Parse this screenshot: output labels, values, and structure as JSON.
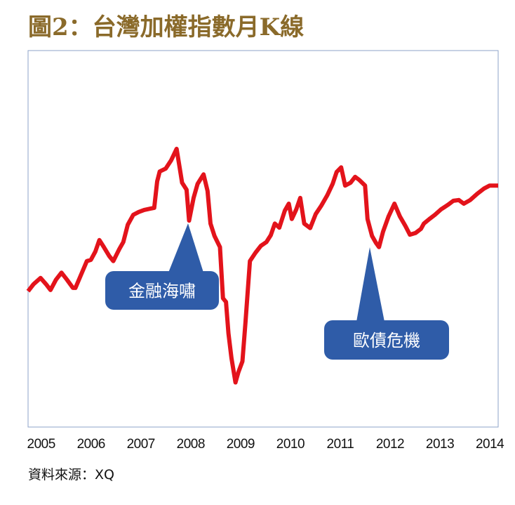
{
  "chart_data": {
    "type": "line",
    "title": "圖2：台灣加權指數月K線",
    "source": "資料來源：XQ",
    "color": "#e3131b",
    "x": [
      2004.85,
      2004.96,
      2005.1,
      2005.21,
      2005.3,
      2005.41,
      2005.52,
      2005.63,
      2005.75,
      2005.8,
      2005.92,
      2006.03,
      2006.11,
      2006.2,
      2006.28,
      2006.37,
      2006.48,
      2006.56,
      2006.68,
      2006.76,
      2006.85,
      2006.96,
      2007.07,
      2007.18,
      2007.3,
      2007.38,
      2007.44,
      2007.49,
      2007.61,
      2007.72,
      2007.83,
      2007.89,
      2007.94,
      2008.03,
      2008.08,
      2008.17,
      2008.25,
      2008.37,
      2008.45,
      2008.51,
      2008.59,
      2008.7,
      2008.76,
      2008.82,
      2008.87,
      2008.93,
      2009.01,
      2009.07,
      2009.15,
      2009.21,
      2009.3,
      2009.41,
      2009.52,
      2009.63,
      2009.72,
      2009.8,
      2009.89,
      2010.0,
      2010.08,
      2010.14,
      2010.23,
      2010.31,
      2010.39,
      2010.51,
      2010.62,
      2010.73,
      2010.85,
      2010.96,
      2011.04,
      2011.13,
      2011.21,
      2011.32,
      2011.41,
      2011.49,
      2011.61,
      2011.66,
      2011.75,
      2011.83,
      2011.89,
      2011.97,
      2012.08,
      2012.2,
      2012.31,
      2012.42,
      2012.51,
      2012.62,
      2012.73,
      2012.79,
      2012.9,
      2013.01,
      2013.13,
      2013.27,
      2013.38,
      2013.49,
      2013.59,
      2013.72,
      2013.86,
      2014.0,
      2014.11,
      2014.28
    ],
    "values": [
      6320,
      6490,
      6640,
      6490,
      6350,
      6600,
      6770,
      6600,
      6400,
      6400,
      6740,
      7050,
      7080,
      7280,
      7560,
      7390,
      7170,
      7050,
      7340,
      7510,
      7930,
      8170,
      8240,
      8290,
      8320,
      8340,
      8980,
      9220,
      9290,
      9490,
      9770,
      9320,
      8950,
      8780,
      8030,
      8580,
      8920,
      9150,
      8750,
      7960,
      7660,
      7390,
      6150,
      6060,
      5300,
      4700,
      4110,
      4360,
      4620,
      5550,
      7050,
      7250,
      7420,
      7510,
      7680,
      7960,
      7860,
      8270,
      8440,
      8070,
      8300,
      8580,
      7960,
      7850,
      8190,
      8390,
      8640,
      8920,
      9210,
      9320,
      8880,
      8950,
      9090,
      9020,
      8880,
      8070,
      7660,
      7490,
      7390,
      7760,
      8130,
      8440,
      8130,
      7900,
      7690,
      7730,
      7830,
      7960,
      8070,
      8170,
      8300,
      8410,
      8510,
      8530,
      8440,
      8530,
      8680,
      8810,
      8880,
      8880
    ],
    "xlim": [
      2004.85,
      2014.28
    ],
    "ylim": [
      3030,
      12150
    ],
    "xticks": [
      2005,
      2006,
      2007,
      2008,
      2009,
      2010,
      2011,
      2012,
      2013,
      2014
    ],
    "annotations": [
      {
        "text": "金融海嘯"
      },
      {
        "text": "歐債危機"
      }
    ]
  }
}
